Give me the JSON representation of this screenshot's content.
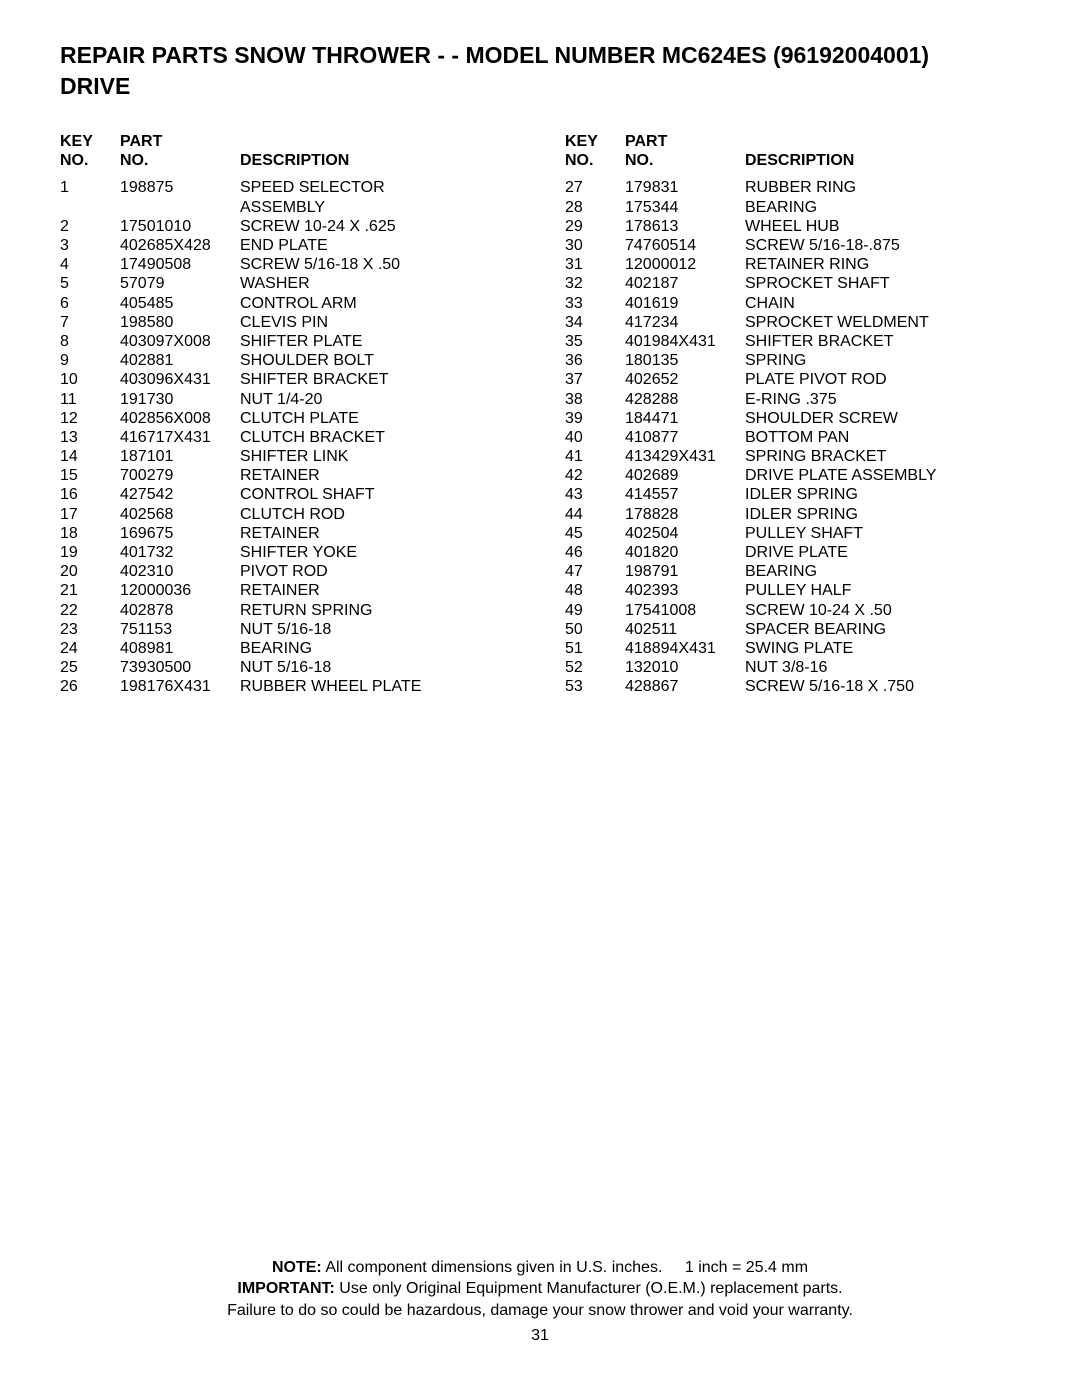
{
  "title_line1": "REPAIR PARTS  SNOW THROWER - - MODEL NUMBER  MC624ES (96192004001)",
  "title_line2": "DRIVE",
  "headers": {
    "key_line1": "KEY",
    "key_line2": "NO.",
    "part_line1": "PART",
    "part_line2": "NO.",
    "description": "DESCRIPTION"
  },
  "rows_left": [
    {
      "key": "1",
      "part": "198875",
      "desc": "SPEED SELECTOR\nASSEMBLY"
    },
    {
      "key": "2",
      "part": "17501010",
      "desc": "SCREW 10-24 X .625"
    },
    {
      "key": "3",
      "part": "402685X428",
      "desc": "END PLATE"
    },
    {
      "key": "4",
      "part": "17490508",
      "desc": "SCREW 5/16-18 X .50"
    },
    {
      "key": "5",
      "part": "57079",
      "desc": "WASHER"
    },
    {
      "key": "6",
      "part": "405485",
      "desc": "CONTROL ARM"
    },
    {
      "key": "7",
      "part": "198580",
      "desc": "CLEVIS PIN"
    },
    {
      "key": "8",
      "part": "403097X008",
      "desc": "SHIFTER PLATE"
    },
    {
      "key": "9",
      "part": "402881",
      "desc": "SHOULDER BOLT"
    },
    {
      "key": "10",
      "part": "403096X431",
      "desc": "SHIFTER BRACKET"
    },
    {
      "key": "11",
      "part": "191730",
      "desc": "NUT 1/4-20"
    },
    {
      "key": "12",
      "part": "402856X008",
      "desc": "CLUTCH PLATE"
    },
    {
      "key": "13",
      "part": "416717X431",
      "desc": "CLUTCH BRACKET"
    },
    {
      "key": "14",
      "part": "187101",
      "desc": "SHIFTER LINK"
    },
    {
      "key": "15",
      "part": "700279",
      "desc": "RETAINER"
    },
    {
      "key": "16",
      "part": "427542",
      "desc": "CONTROL SHAFT"
    },
    {
      "key": "17",
      "part": "402568",
      "desc": "CLUTCH ROD"
    },
    {
      "key": "18",
      "part": "169675",
      "desc": "RETAINER"
    },
    {
      "key": "19",
      "part": "401732",
      "desc": "SHIFTER YOKE"
    },
    {
      "key": "20",
      "part": "402310",
      "desc": "PIVOT ROD"
    },
    {
      "key": "21",
      "part": "12000036",
      "desc": "RETAINER"
    },
    {
      "key": "22",
      "part": "402878",
      "desc": "RETURN SPRING"
    },
    {
      "key": "23",
      "part": "751153",
      "desc": "NUT 5/16-18"
    },
    {
      "key": "24",
      "part": "408981",
      "desc": "BEARING"
    },
    {
      "key": "25",
      "part": "73930500",
      "desc": "NUT 5/16-18"
    },
    {
      "key": "26",
      "part": "198176X431",
      "desc": "RUBBER WHEEL PLATE"
    }
  ],
  "rows_right": [
    {
      "key": "27",
      "part": "179831",
      "desc": "RUBBER RING"
    },
    {
      "key": "28",
      "part": "175344",
      "desc": "BEARING"
    },
    {
      "key": "29",
      "part": "178613",
      "desc": "WHEEL HUB"
    },
    {
      "key": "30",
      "part": "74760514",
      "desc": "SCREW 5/16-18-.875"
    },
    {
      "key": "31",
      "part": "12000012",
      "desc": "RETAINER RING"
    },
    {
      "key": "32",
      "part": "402187",
      "desc": "SPROCKET SHAFT"
    },
    {
      "key": "33",
      "part": "401619",
      "desc": "CHAIN"
    },
    {
      "key": "34",
      "part": "417234",
      "desc": "SPROCKET WELDMENT"
    },
    {
      "key": "35",
      "part": "401984X431",
      "desc": "SHIFTER BRACKET"
    },
    {
      "key": "36",
      "part": "180135",
      "desc": "SPRING"
    },
    {
      "key": "37",
      "part": "402652",
      "desc": "PLATE PIVOT ROD"
    },
    {
      "key": "38",
      "part": "428288",
      "desc": "E-RING .375"
    },
    {
      "key": "39",
      "part": "184471",
      "desc": "SHOULDER SCREW"
    },
    {
      "key": "40",
      "part": "410877",
      "desc": "BOTTOM PAN"
    },
    {
      "key": "41",
      "part": "413429X431",
      "desc": "SPRING BRACKET"
    },
    {
      "key": "42",
      "part": "402689",
      "desc": "DRIVE PLATE ASSEMBLY"
    },
    {
      "key": "43",
      "part": "414557",
      "desc": "IDLER SPRING"
    },
    {
      "key": "44",
      "part": "178828",
      "desc": "IDLER SPRING"
    },
    {
      "key": "45",
      "part": "402504",
      "desc": "PULLEY SHAFT"
    },
    {
      "key": "46",
      "part": "401820",
      "desc": "DRIVE PLATE"
    },
    {
      "key": "47",
      "part": "198791",
      "desc": "BEARING"
    },
    {
      "key": "48",
      "part": "402393",
      "desc": "PULLEY HALF"
    },
    {
      "key": "49",
      "part": "17541008",
      "desc": "SCREW 10-24 X .50"
    },
    {
      "key": "50",
      "part": "402511",
      "desc": "SPACER BEARING"
    },
    {
      "key": "51",
      "part": "418894X431",
      "desc": "SWING PLATE"
    },
    {
      "key": "52",
      "part": "132010",
      "desc": "NUT 3/8-16"
    },
    {
      "key": "53",
      "part": "428867",
      "desc": "SCREW 5/16-18 X .750"
    }
  ],
  "footer": {
    "note_label": "NOTE:",
    "note_text1": "All component dimensions given in U.S. inches.",
    "note_text2": "1 inch = 25.4 mm",
    "important_label": "IMPORTANT:",
    "important_text": "Use only Original Equipment Manufacturer (O.E.M.) replacement parts.",
    "warning_text": "Failure to do so could be hazardous, damage your snow thrower and void your warranty.",
    "page_number": "31"
  }
}
